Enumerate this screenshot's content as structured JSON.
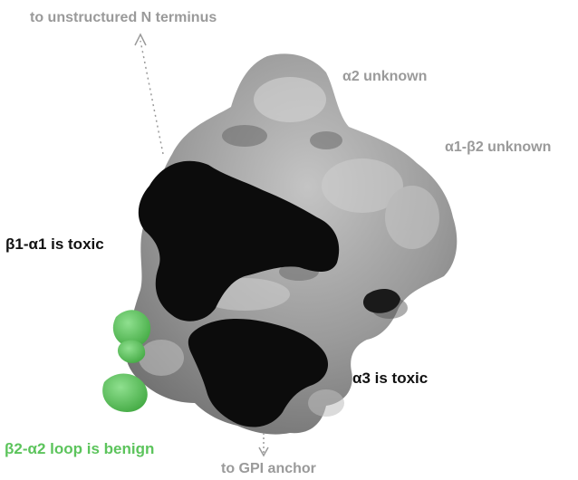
{
  "labels": {
    "n_terminus": "to unstructured N terminus",
    "alpha2": "α2 unknown",
    "alpha1_beta2": "α1-β2 unknown",
    "beta1_alpha1": "β1-α1 is toxic",
    "alpha3": "α3 is toxic",
    "beta2_alpha2": "β2-α2 loop is benign",
    "gpi": "to GPI anchor"
  },
  "colors": {
    "label_grey": "#9a9a9a",
    "label_dark": "#111111",
    "label_green": "#5cc45c",
    "surface_grey": "#8e8e8e",
    "surface_light": "#b9b9b9",
    "toxic_black": "#0c0c0c",
    "benign_green": "#5ec85e"
  }
}
